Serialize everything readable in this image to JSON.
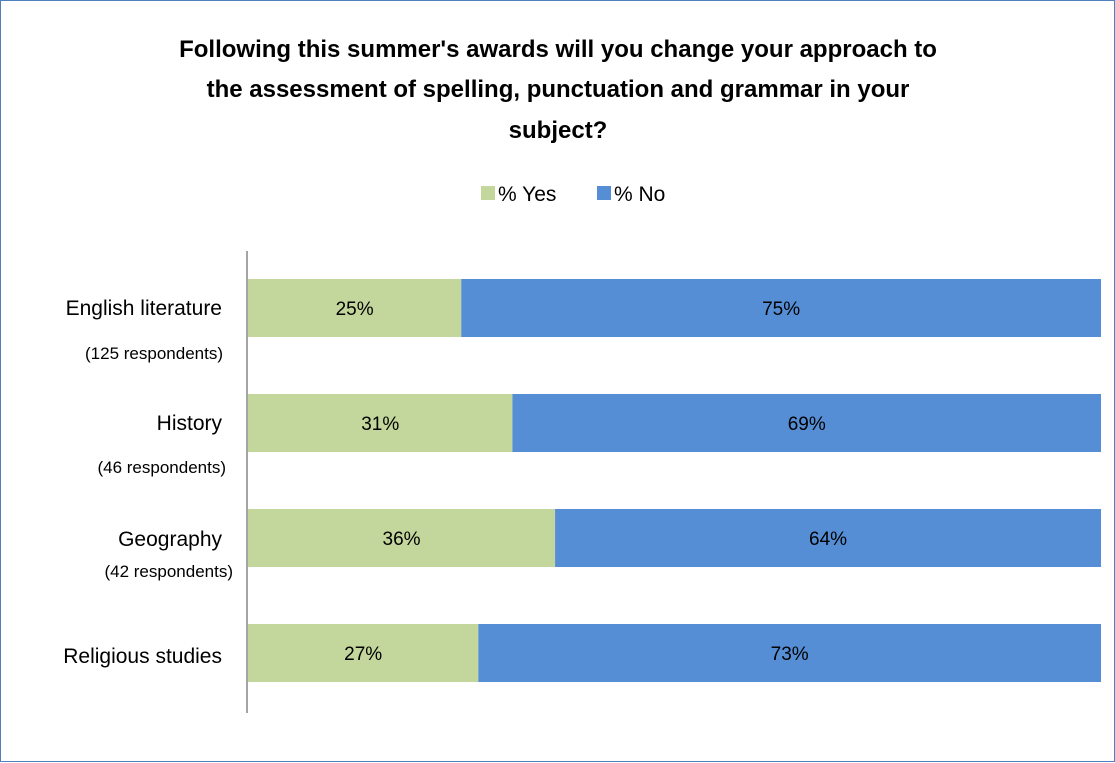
{
  "chart_data": {
    "type": "bar",
    "orientation": "horizontal",
    "stacked": true,
    "title": "Following this summer's awards will you change your approach to the assessment of spelling, punctuation and grammar in your subject?",
    "title_lines": [
      "Following this summer's awards will you change your approach to",
      "the assessment of spelling, punctuation and grammar in your",
      "subject?"
    ],
    "categories": [
      {
        "label": "English literature",
        "sublabel": "(125 respondents)"
      },
      {
        "label": "History",
        "sublabel": "(46 respondents)"
      },
      {
        "label": "Geography",
        "sublabel": "(42 respondents)"
      },
      {
        "label": "Religious studies",
        "sublabel": ""
      }
    ],
    "series": [
      {
        "name": "% Yes",
        "color": "#c3d69b",
        "values": [
          25,
          31,
          36,
          27
        ],
        "labels": [
          "25%",
          "31%",
          "36%",
          "27%"
        ]
      },
      {
        "name": "% No",
        "color": "#558ed5",
        "values": [
          75,
          69,
          64,
          73
        ],
        "labels": [
          "75%",
          "69%",
          "64%",
          "73%"
        ]
      }
    ],
    "xlim": [
      0,
      100
    ],
    "grid": false,
    "legend_position": "top-center",
    "xlabel": "",
    "ylabel": ""
  }
}
